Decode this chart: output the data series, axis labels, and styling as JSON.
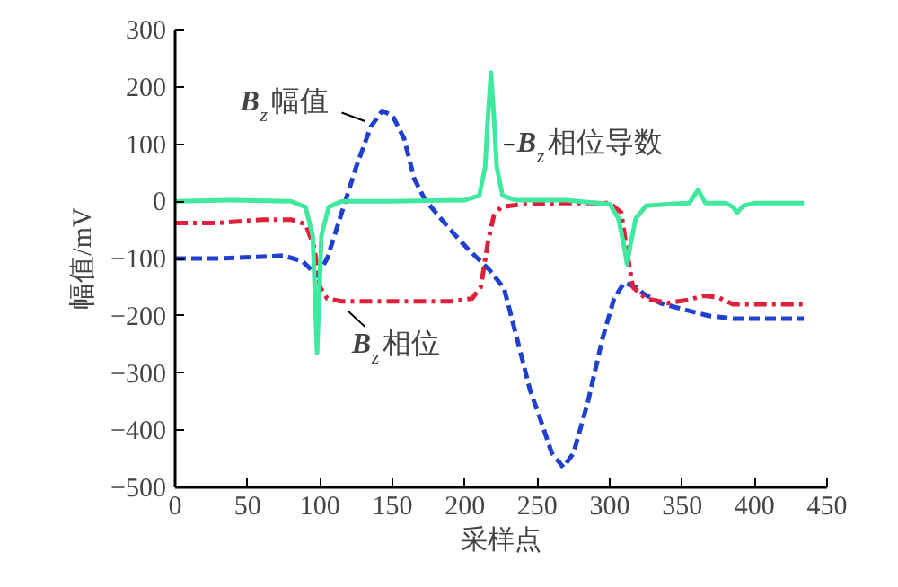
{
  "chart_data": {
    "type": "line",
    "xlabel": "采样点",
    "ylabel": "幅值/mV",
    "xlim": [
      0,
      450
    ],
    "ylim": [
      -500,
      300
    ],
    "xticks": [
      0,
      50,
      100,
      150,
      200,
      250,
      300,
      350,
      400,
      450
    ],
    "yticks": [
      -500,
      -400,
      -300,
      -200,
      -100,
      0,
      100,
      200,
      300
    ],
    "grid": false,
    "legend": false,
    "series": [
      {
        "name": "B$_{z}$幅值",
        "color": "#2040d0",
        "line_style": "dashed",
        "x": [
          0,
          30,
          60,
          75,
          88,
          98,
          105,
          115,
          125,
          135,
          143,
          150,
          158,
          165,
          172,
          180,
          190,
          202,
          217,
          227,
          235,
          245,
          252,
          260,
          268,
          275,
          285,
          295,
          303,
          310,
          318,
          323,
          335,
          351,
          368,
          385,
          410,
          434
        ],
        "values": [
          -100,
          -100,
          -97,
          -95,
          -105,
          -130,
          -100,
          -20,
          60,
          130,
          158,
          150,
          110,
          40,
          5,
          -20,
          -50,
          -83,
          -120,
          -152,
          -230,
          -330,
          -380,
          -440,
          -465,
          -440,
          -350,
          -240,
          -170,
          -142,
          -150,
          -161,
          -178,
          -189,
          -200,
          -205,
          -205,
          -205
        ]
      },
      {
        "name": "B$_{z}$相位",
        "color": "#e0203a",
        "line_style": "dashdot",
        "x": [
          0,
          30,
          60,
          80,
          90,
          96,
          100,
          105,
          115,
          150,
          190,
          205,
          211,
          216,
          220,
          225,
          240,
          270,
          300,
          308,
          312,
          316,
          325,
          340,
          355,
          365,
          375,
          385,
          410,
          434
        ],
        "values": [
          -38,
          -38,
          -32,
          -32,
          -40,
          -80,
          -150,
          -170,
          -175,
          -175,
          -175,
          -170,
          -150,
          -70,
          -25,
          -10,
          -5,
          -3,
          -3,
          -20,
          -90,
          -150,
          -170,
          -178,
          -172,
          -165,
          -168,
          -180,
          -180,
          -180
        ]
      },
      {
        "name": "B$_{z}$相位导数",
        "color": "#40e8a0",
        "line_style": "solid",
        "x": [
          0,
          40,
          80,
          90,
          95,
          98,
          101,
          106,
          115,
          150,
          200,
          210,
          214,
          216,
          218,
          220,
          222,
          226,
          235,
          270,
          300,
          306,
          310,
          312,
          314,
          318,
          325,
          340,
          355,
          361,
          366,
          380,
          385,
          388,
          392,
          400,
          434
        ],
        "values": [
          0,
          2,
          0,
          -10,
          -60,
          -265,
          -60,
          -10,
          0,
          0,
          2,
          10,
          60,
          150,
          225,
          150,
          60,
          10,
          2,
          2,
          -5,
          -30,
          -80,
          -110,
          -80,
          -30,
          -8,
          -5,
          -3,
          20,
          -3,
          -3,
          -10,
          -20,
          -8,
          -3,
          -3
        ]
      }
    ]
  }
}
